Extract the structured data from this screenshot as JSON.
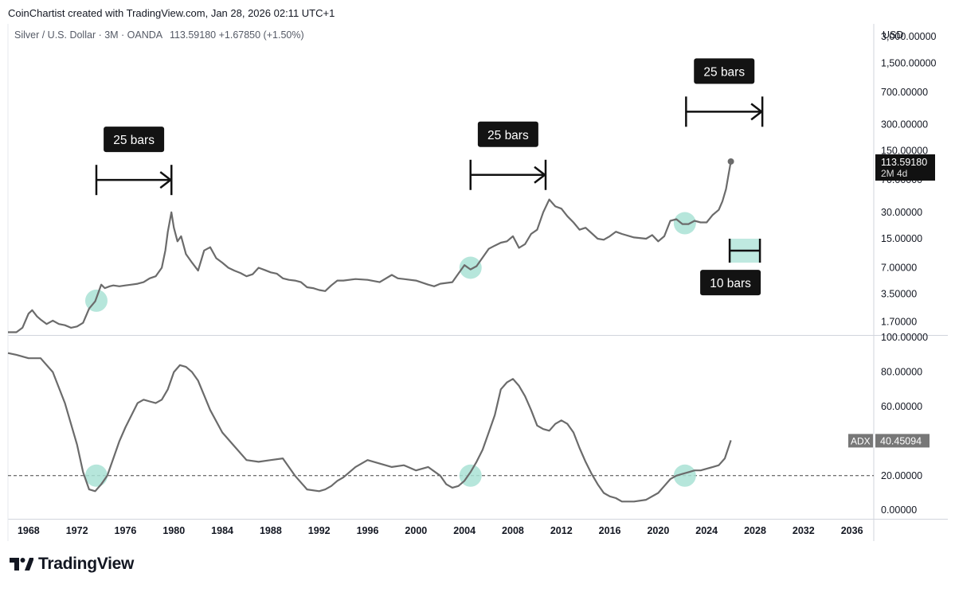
{
  "header": {
    "attribution": "CoinChartist created with TradingView.com, Jan 28, 2026 02:11 UTC+1",
    "symbol": "Silver / U.S. Dollar · 3M · OANDA",
    "price": "113.59180",
    "change": "+1.67850 (+1.50%)"
  },
  "colors": {
    "line": "#6b6b6b",
    "highlight": "#a9e2d5",
    "label_bg": "#131313",
    "label_text": "#ffffff",
    "grid": "#e0e3eb",
    "axis_text": "#131722"
  },
  "chart_data": [
    {
      "type": "line",
      "title": "Silver / U.S. Dollar · 3M · OANDA",
      "y_unit": "USD",
      "y_scale": "log",
      "ylim": [
        1.2,
        4200
      ],
      "xlim": [
        1966.3,
        2037.8
      ],
      "y_ticks": [
        {
          "value": 3000,
          "label": "3,000.00000"
        },
        {
          "value": 1500,
          "label": "1,500.00000"
        },
        {
          "value": 700,
          "label": "700.00000"
        },
        {
          "value": 300,
          "label": "300.00000"
        },
        {
          "value": 150,
          "label": "150.00000"
        },
        {
          "value": 70,
          "label": "70.00000"
        },
        {
          "value": 30,
          "label": "30.00000"
        },
        {
          "value": 15,
          "label": "15.00000"
        },
        {
          "value": 7,
          "label": "7.00000"
        },
        {
          "value": 3.5,
          "label": "3.50000"
        },
        {
          "value": 1.7,
          "label": "1.70000"
        }
      ],
      "last_value": {
        "label": "113.59180",
        "sublabel": "2M 4d",
        "value": 113.6
      },
      "series": [
        {
          "name": "Silver",
          "x": [
            1966.3,
            1967.0,
            1967.5,
            1968.0,
            1968.3,
            1968.7,
            1969.0,
            1969.5,
            1970.0,
            1970.5,
            1971.0,
            1971.5,
            1972.0,
            1972.5,
            1973.0,
            1973.5,
            1974.0,
            1974.3,
            1974.7,
            1975.0,
            1975.5,
            1976.0,
            1976.5,
            1977.0,
            1977.5,
            1978.0,
            1978.5,
            1979.0,
            1979.3,
            1979.5,
            1979.8,
            1980.0,
            1980.3,
            1980.6,
            1981.0,
            1981.5,
            1982.0,
            1982.5,
            1983.0,
            1983.5,
            1984.0,
            1984.5,
            1985.0,
            1985.5,
            1986.0,
            1986.5,
            1987.0,
            1987.5,
            1988.0,
            1988.5,
            1989.0,
            1989.5,
            1990.0,
            1990.5,
            1991.0,
            1991.5,
            1992.0,
            1992.5,
            1993.0,
            1993.5,
            1994.0,
            1995.0,
            1996.0,
            1997.0,
            1998.0,
            1998.5,
            1999.0,
            2000.0,
            2001.0,
            2001.5,
            2002.0,
            2003.0,
            2003.5,
            2004.0,
            2004.5,
            2005.0,
            2006.0,
            2006.5,
            2007.0,
            2007.5,
            2008.0,
            2008.5,
            2009.0,
            2009.5,
            2010.0,
            2010.5,
            2011.0,
            2011.5,
            2012.0,
            2012.5,
            2013.0,
            2013.5,
            2014.0,
            2015.0,
            2015.5,
            2016.0,
            2016.5,
            2017.0,
            2018.0,
            2019.0,
            2019.5,
            2020.0,
            2020.5,
            2021.0,
            2021.5,
            2022.0,
            2022.5,
            2023.0,
            2023.5,
            2024.0,
            2024.5,
            2025.0,
            2025.3,
            2025.6,
            2025.8,
            2026.0
          ],
          "values": [
            1.29,
            1.29,
            1.45,
            2.1,
            2.3,
            1.95,
            1.8,
            1.6,
            1.75,
            1.6,
            1.55,
            1.45,
            1.5,
            1.65,
            2.4,
            2.9,
            4.5,
            4.1,
            4.3,
            4.4,
            4.3,
            4.4,
            4.5,
            4.6,
            4.8,
            5.3,
            5.6,
            7.0,
            11,
            18,
            30,
            20,
            14,
            16,
            10,
            8,
            6.5,
            11,
            12,
            9,
            8,
            7,
            6.5,
            6.1,
            5.6,
            5.9,
            7,
            6.6,
            6.2,
            6,
            5.3,
            5.1,
            5,
            4.8,
            4.2,
            4.1,
            3.9,
            3.8,
            4.4,
            5,
            5,
            5.2,
            5.1,
            4.8,
            5.8,
            5.3,
            5.2,
            5.0,
            4.5,
            4.3,
            4.6,
            4.8,
            6,
            7.5,
            6.7,
            7.3,
            11.5,
            12.5,
            13.5,
            14,
            16,
            11.8,
            13,
            17,
            19,
            30,
            42,
            35,
            33,
            27,
            23,
            19,
            20,
            15,
            14.6,
            16,
            18,
            17,
            15.5,
            15,
            16.5,
            14,
            16,
            24,
            25,
            22,
            22,
            24,
            23,
            23,
            28,
            32,
            40,
            55,
            80,
            113.6
          ]
        }
      ],
      "annotations": [
        {
          "type": "measure",
          "label": "25 bars",
          "x_start": 1973.6,
          "x_end": 1979.8,
          "y": 70
        },
        {
          "type": "measure",
          "label": "25 bars",
          "x_start": 2004.5,
          "x_end": 2010.7,
          "y": 80
        },
        {
          "type": "measure",
          "label": "25 bars",
          "x_start": 2022.3,
          "x_end": 2028.6,
          "y": 420
        },
        {
          "type": "measure_box",
          "label": "10 bars",
          "x_start": 2025.9,
          "x_end": 2028.4,
          "y_low": 8,
          "y_high": 15
        },
        {
          "type": "circle",
          "x": 1973.6,
          "y": 2.95
        },
        {
          "type": "circle",
          "x": 2004.5,
          "y": 7.0
        },
        {
          "type": "circle",
          "x": 2022.2,
          "y": 22.5
        }
      ]
    },
    {
      "type": "line",
      "title": "ADX",
      "ylim": [
        -5,
        101
      ],
      "xlim": [
        1966.3,
        2037.8
      ],
      "y_ticks": [
        {
          "value": 100,
          "label": "100.00000"
        },
        {
          "value": 80,
          "label": "80.00000"
        },
        {
          "value": 60,
          "label": "60.00000"
        },
        {
          "value": 20,
          "label": "20.00000"
        },
        {
          "value": 0,
          "label": "0.00000"
        }
      ],
      "reference_line": 20,
      "last_value": {
        "name": "ADX",
        "label": "40.45094",
        "value": 40.45
      },
      "series": [
        {
          "name": "ADX",
          "x": [
            1966.3,
            1967.0,
            1968.0,
            1969.0,
            1970.0,
            1971.0,
            1971.5,
            1972.0,
            1972.5,
            1973.0,
            1973.5,
            1974.0,
            1974.5,
            1975.0,
            1975.5,
            1976.0,
            1977.0,
            1977.5,
            1978.0,
            1978.5,
            1979.0,
            1979.5,
            1980.0,
            1980.5,
            1981.0,
            1981.5,
            1982.0,
            1983.0,
            1984.0,
            1985.0,
            1986.0,
            1987.0,
            1988.0,
            1989.0,
            1990.0,
            1991.0,
            1992.0,
            1992.5,
            1993.0,
            1993.5,
            1994.0,
            1995.0,
            1996.0,
            1997.0,
            1998.0,
            1999.0,
            2000.0,
            2001.0,
            2002.0,
            2002.5,
            2003.0,
            2003.5,
            2004.0,
            2004.5,
            2005.0,
            2005.5,
            2006.0,
            2006.5,
            2007.0,
            2007.5,
            2008.0,
            2008.5,
            2009.0,
            2009.5,
            2010.0,
            2010.5,
            2011.0,
            2011.5,
            2012.0,
            2012.5,
            2013.0,
            2013.5,
            2014.0,
            2014.5,
            2015.0,
            2015.5,
            2016.0,
            2016.5,
            2017.0,
            2018.0,
            2019.0,
            2020.0,
            2020.5,
            2021.0,
            2021.5,
            2022.0,
            2022.5,
            2023.0,
            2023.5,
            2024.0,
            2024.5,
            2025.0,
            2025.5,
            2026.0
          ],
          "values": [
            91,
            90,
            88,
            88,
            80,
            62,
            50,
            38,
            22,
            12,
            11,
            15,
            20,
            30,
            40,
            48,
            62,
            64,
            63,
            62,
            64,
            70,
            80,
            84,
            83,
            80,
            75,
            58,
            45,
            37,
            29,
            28,
            29,
            30,
            20,
            12,
            11,
            12,
            14,
            17,
            19,
            25,
            29,
            27,
            25,
            26,
            23,
            25,
            20,
            15,
            13,
            14,
            17,
            22,
            28,
            35,
            45,
            55,
            70,
            74,
            76,
            72,
            66,
            58,
            49,
            47,
            46,
            50,
            52,
            50,
            45,
            36,
            28,
            21,
            15,
            10,
            8,
            7,
            5,
            5,
            6,
            10,
            14,
            18,
            20,
            21,
            22,
            23,
            23,
            24,
            25,
            26,
            30,
            40.45
          ]
        }
      ]
    }
  ],
  "x_axis": {
    "ticks": [
      {
        "year": 1968,
        "label": "1968"
      },
      {
        "year": 1972,
        "label": "1972"
      },
      {
        "year": 1976,
        "label": "1976"
      },
      {
        "year": 1980,
        "label": "1980"
      },
      {
        "year": 1984,
        "label": "1984"
      },
      {
        "year": 1988,
        "label": "1988"
      },
      {
        "year": 1992,
        "label": "1992"
      },
      {
        "year": 1996,
        "label": "1996"
      },
      {
        "year": 2000,
        "label": "2000"
      },
      {
        "year": 2004,
        "label": "2004"
      },
      {
        "year": 2008,
        "label": "2008"
      },
      {
        "year": 2012,
        "label": "2012"
      },
      {
        "year": 2016,
        "label": "2016"
      },
      {
        "year": 2020,
        "label": "2020"
      },
      {
        "year": 2024,
        "label": "2024"
      },
      {
        "year": 2028,
        "label": "2028"
      },
      {
        "year": 2032,
        "label": "2032"
      },
      {
        "year": 2036,
        "label": "2036"
      }
    ]
  },
  "footer": {
    "logo_text": "TradingView"
  }
}
